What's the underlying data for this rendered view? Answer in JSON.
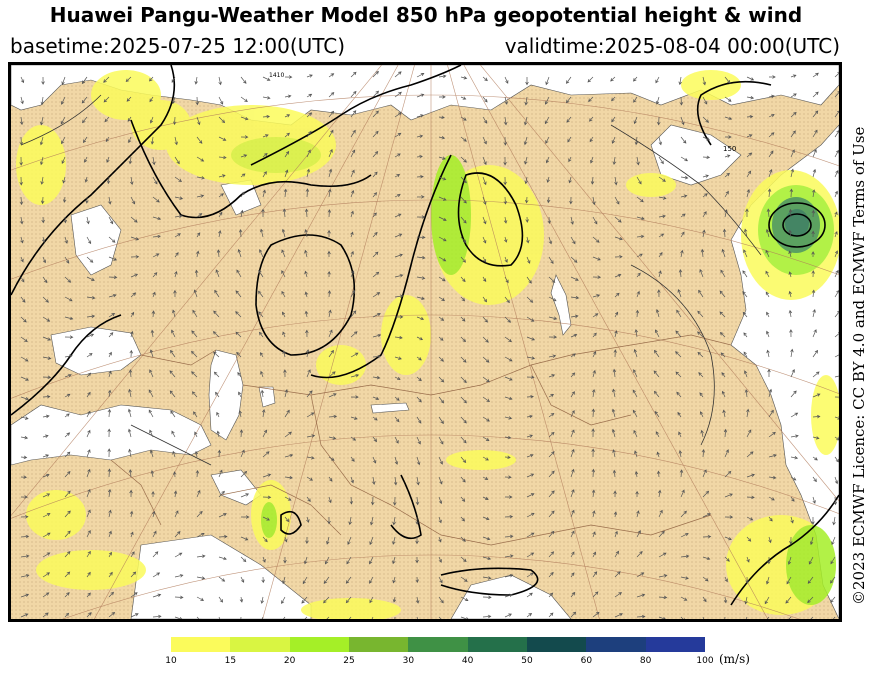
{
  "title": "Huawei Pangu-Weather Model 850 hPa geopotential height & wind",
  "basetime": "basetime:2025-07-25 12:00(UTC)",
  "validtime": "validtime:2025-08-04 00:00(UTC)",
  "credit": "©2023 ECMWF Licence: CC BY 4.0 and ECMWF Terms of Use",
  "map": {
    "height_labels": [
      "1410",
      "150"
    ],
    "colors": {
      "land": "#f1d7a6",
      "sea": "#ffffff",
      "contour": "#000000",
      "wind_arrow": "#555555"
    }
  },
  "colorbar": {
    "unit": "(m/s)",
    "ticks": [
      "10",
      "15",
      "20",
      "25",
      "30",
      "40",
      "50",
      "60",
      "80",
      "100"
    ],
    "colors": [
      "#fbfb5b",
      "#d9f542",
      "#a5ef27",
      "#78b62f",
      "#3f9145",
      "#24704a",
      "#134a4d",
      "#1d3f7d",
      "#253a9b"
    ]
  }
}
